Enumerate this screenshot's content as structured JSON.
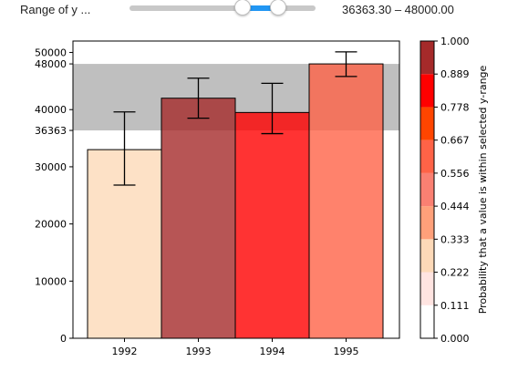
{
  "widget": {
    "label": "Range of y ...",
    "value_text": "36363.30 – 48000.00",
    "low": 36363.3,
    "high": 48000.0,
    "slider_min": 0,
    "slider_max": 60000
  },
  "chart_data": {
    "type": "bar",
    "title": "",
    "xlabel": "",
    "ylabel": "",
    "categories": [
      "1992",
      "1993",
      "1994",
      "1995"
    ],
    "values": [
      33000,
      42000,
      39500,
      48000
    ],
    "error_bars": [
      [
        26800,
        39600
      ],
      [
        38500,
        45500
      ],
      [
        35800,
        44600
      ],
      [
        45800,
        50100
      ]
    ],
    "bar_colors": [
      "#fdd9b8",
      "#a52a2a",
      "#ff0000",
      "#ff6347"
    ],
    "ylim": [
      0,
      52000
    ],
    "yticks": [
      0,
      10000,
      20000,
      30000,
      36363,
      40000,
      48000,
      50000
    ],
    "highlight_band": [
      36363.3,
      48000
    ],
    "colorbar": {
      "label": "Probability that a value is within selected y-range",
      "ticks": [
        "0.000",
        "0.111",
        "0.222",
        "0.333",
        "0.444",
        "0.556",
        "0.667",
        "0.778",
        "0.889",
        "1.000"
      ],
      "colors": [
        "#ffffff",
        "#ffe4e1",
        "#fdd9b8",
        "#ffa07a",
        "#fa8072",
        "#ff6347",
        "#ff4500",
        "#ff0000",
        "#a52a2a"
      ]
    },
    "grid": false,
    "legend": "none"
  }
}
